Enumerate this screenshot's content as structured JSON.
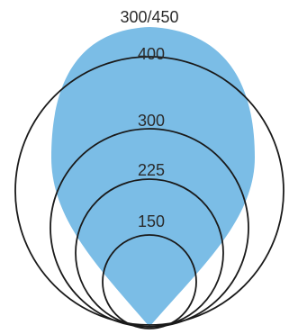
{
  "diagram": {
    "fill_color": "#7bbde6",
    "line_color": "#1a1a1a",
    "labels": {
      "teardrop": "300/450",
      "circle_400": "400",
      "circle_300": "300",
      "circle_225": "225",
      "circle_150": "150"
    }
  }
}
